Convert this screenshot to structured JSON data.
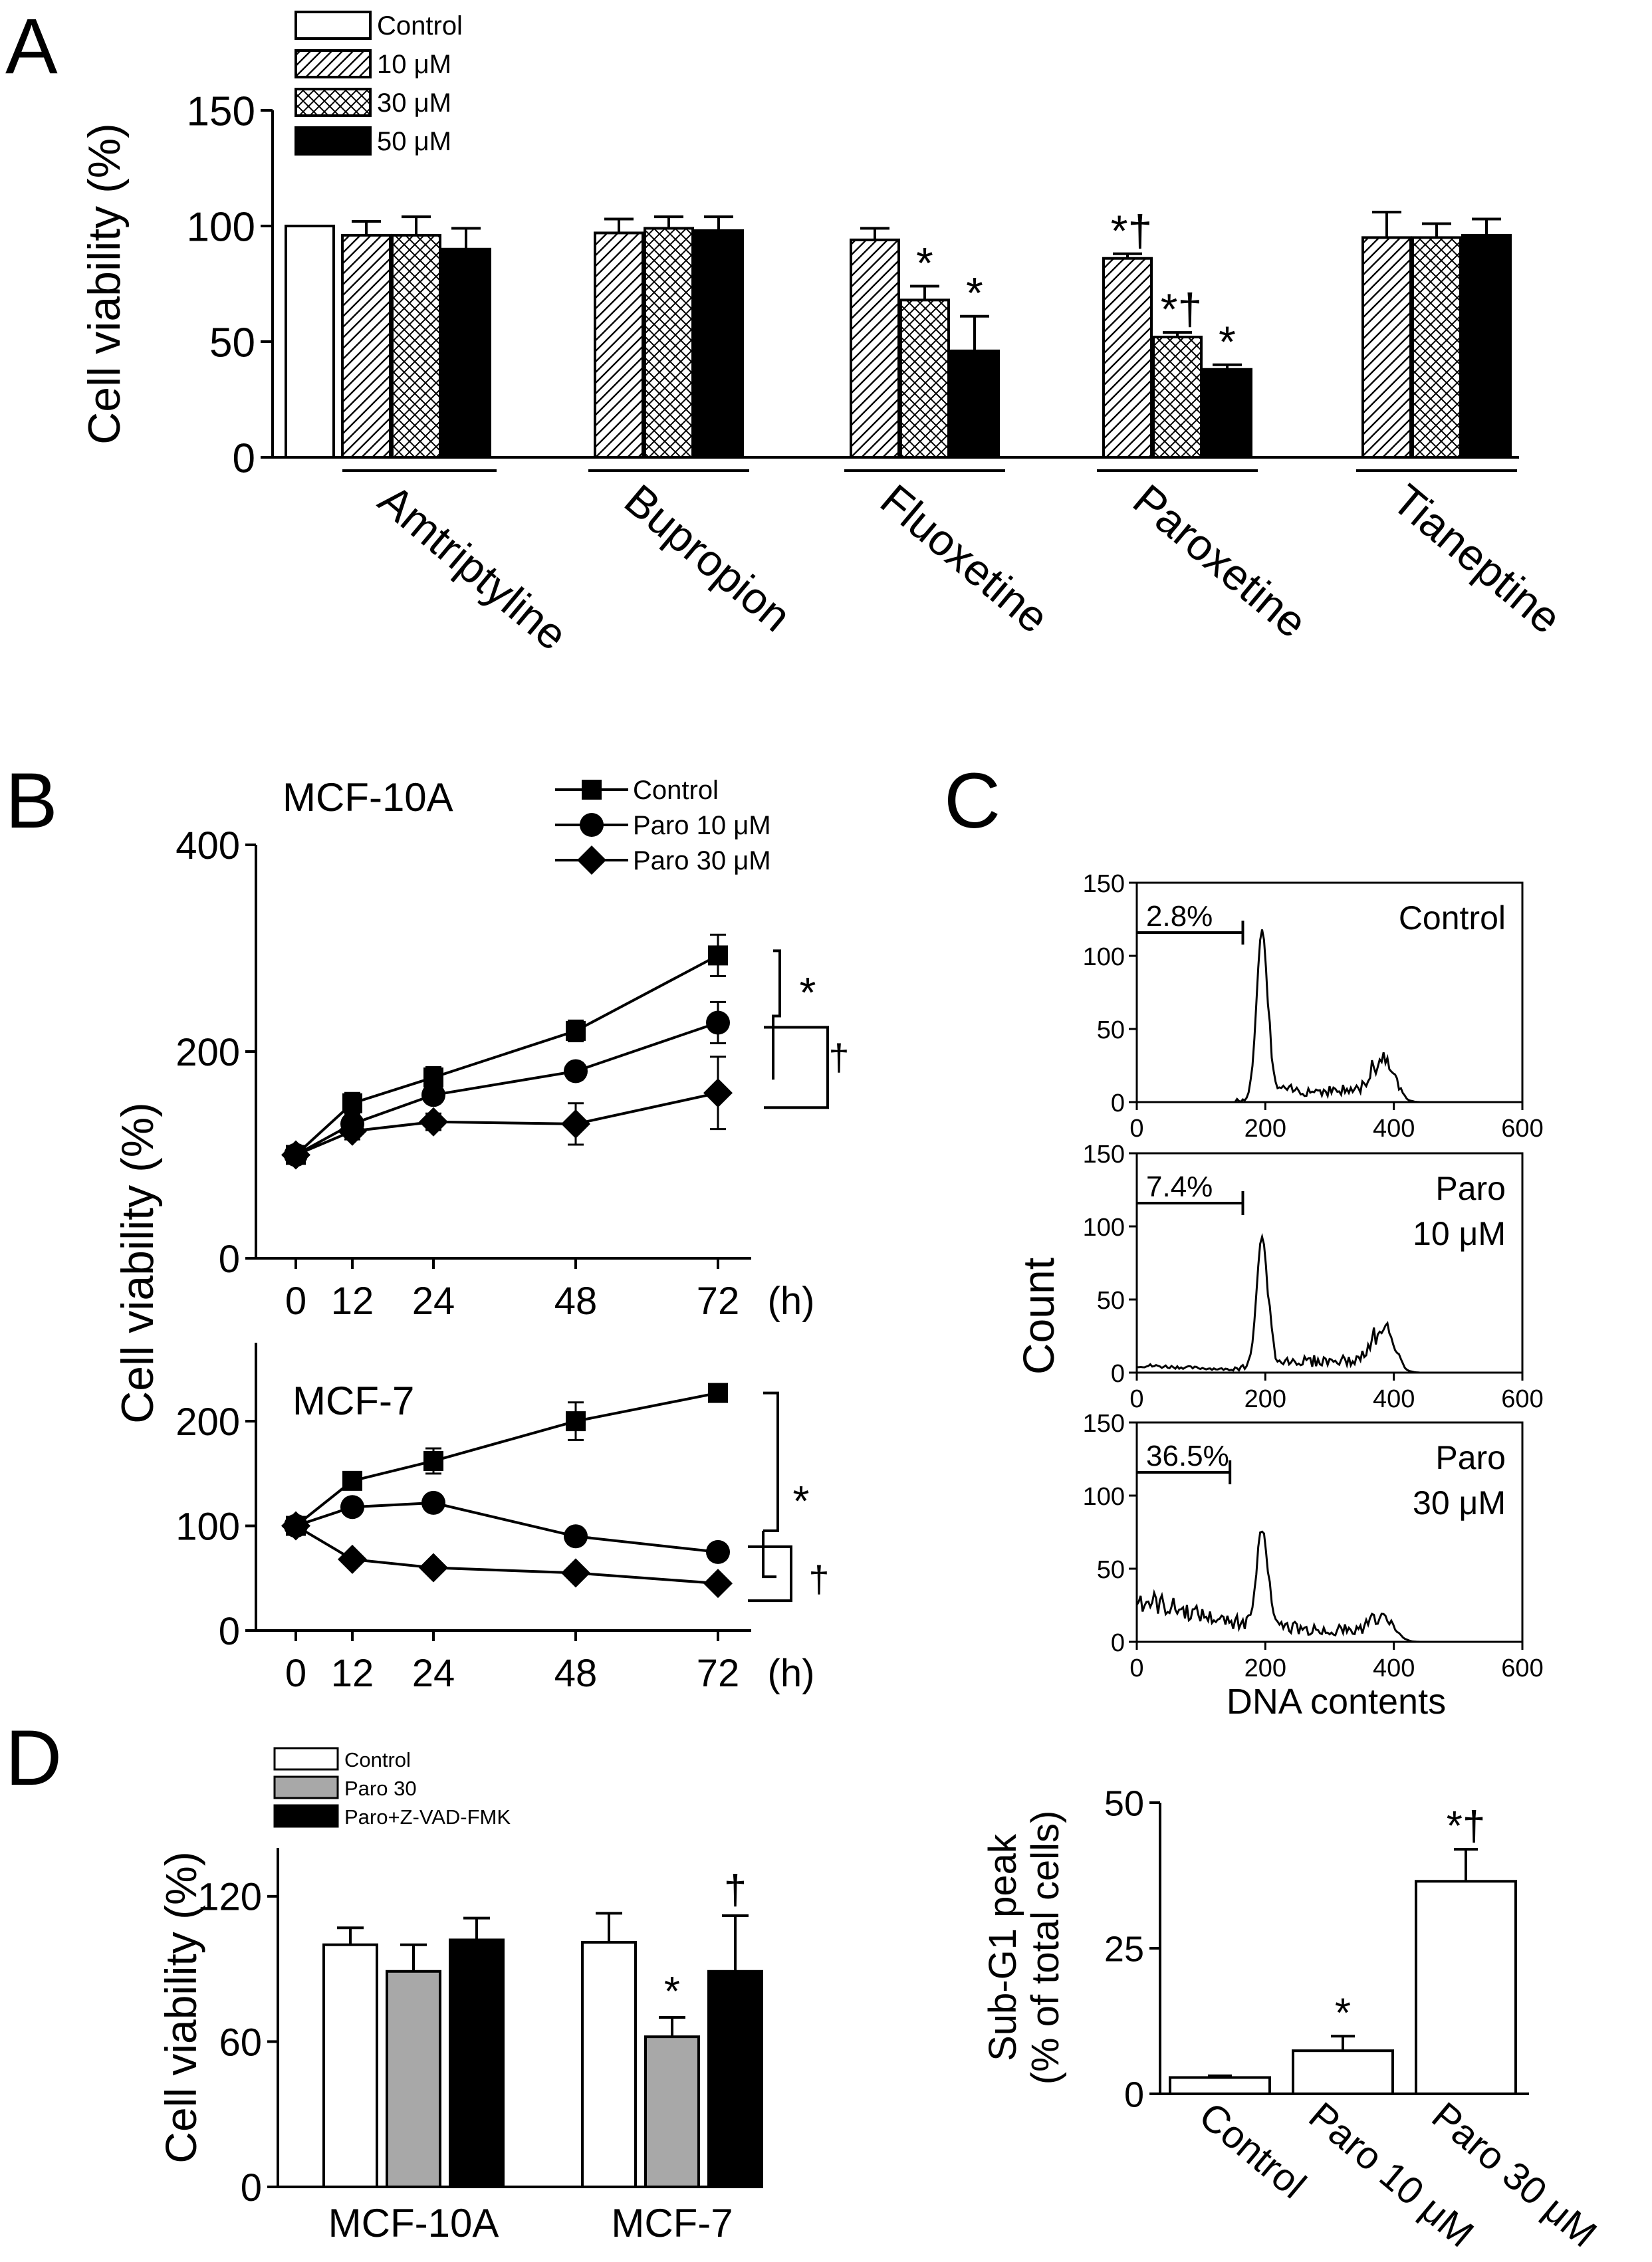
{
  "panel_labels": {
    "A": "A",
    "B": "B",
    "C": "C",
    "D": "D"
  },
  "colors": {
    "control": "#ffffff",
    "paro30": "#a8a8a8",
    "black": "#000000"
  },
  "chart_data": [
    {
      "id": "A",
      "type": "bar",
      "ylabel": "Cell viability (%)",
      "ylim": [
        0,
        150
      ],
      "yticks": [
        "0",
        "50",
        "100",
        "150"
      ],
      "legend": [
        "Control",
        "10 μM",
        "30 μM",
        "50 μM"
      ],
      "groups": [
        {
          "name": "Amtriptyline",
          "bars": [
            {
              "series": "Control",
              "value": 100,
              "err": 0,
              "mark": ""
            },
            {
              "series": "10 μM",
              "value": 96,
              "err": 6,
              "mark": ""
            },
            {
              "series": "30 μM",
              "value": 96,
              "err": 8,
              "mark": ""
            },
            {
              "series": "50 μM",
              "value": 90,
              "err": 9,
              "mark": ""
            }
          ]
        },
        {
          "name": "Bupropion",
          "bars": [
            {
              "series": "10 μM",
              "value": 97,
              "err": 6,
              "mark": ""
            },
            {
              "series": "30 μM",
              "value": 99,
              "err": 5,
              "mark": ""
            },
            {
              "series": "50 μM",
              "value": 98,
              "err": 6,
              "mark": ""
            }
          ]
        },
        {
          "name": "Fluoxetine",
          "bars": [
            {
              "series": "10 μM",
              "value": 94,
              "err": 5,
              "mark": ""
            },
            {
              "series": "30 μM",
              "value": 68,
              "err": 6,
              "mark": "*"
            },
            {
              "series": "50 μM",
              "value": 46,
              "err": 15,
              "mark": "*"
            }
          ]
        },
        {
          "name": "Paroxetine",
          "bars": [
            {
              "series": "10 μM",
              "value": 86,
              "err": 2,
              "mark": "*†"
            },
            {
              "series": "30 μM",
              "value": 52,
              "err": 2,
              "mark": "*†"
            },
            {
              "series": "50 μM",
              "value": 38,
              "err": 2,
              "mark": "*"
            }
          ]
        },
        {
          "name": "Tianeptine",
          "bars": [
            {
              "series": "10 μM",
              "value": 95,
              "err": 11,
              "mark": ""
            },
            {
              "series": "30 μM",
              "value": 95,
              "err": 6,
              "mark": ""
            },
            {
              "series": "50 μM",
              "value": 96,
              "err": 7,
              "mark": ""
            }
          ]
        }
      ]
    },
    {
      "id": "B1",
      "type": "line",
      "title": "MCF-10A",
      "ylabel": "Cell viability (%)",
      "xlabel": "(h)",
      "x": [
        0,
        12,
        24,
        48,
        72
      ],
      "xticks": [
        "0",
        "12",
        "24",
        "48",
        "72"
      ],
      "ylim": [
        0,
        400
      ],
      "yticks": [
        "0",
        "200",
        "400"
      ],
      "legend": [
        "Control",
        "Paro 10 μM",
        "Paro 30 μM"
      ],
      "series": [
        {
          "name": "Control",
          "values": [
            100,
            150,
            175,
            220,
            293
          ],
          "err": [
            8,
            10,
            10,
            10,
            20
          ]
        },
        {
          "name": "Paro 10 μM",
          "values": [
            100,
            130,
            158,
            181,
            228
          ],
          "err": [
            8,
            8,
            8,
            8,
            20
          ]
        },
        {
          "name": "Paro 30 μM",
          "values": [
            100,
            123,
            132,
            130,
            160
          ],
          "err": [
            8,
            8,
            8,
            20,
            35
          ]
        }
      ],
      "marks": [
        "*",
        "†"
      ]
    },
    {
      "id": "B2",
      "type": "line",
      "title": "MCF-7",
      "xlabel": "(h)",
      "x": [
        0,
        12,
        24,
        48,
        72
      ],
      "xticks": [
        "0",
        "12",
        "24",
        "48",
        "72"
      ],
      "ylim": [
        0,
        275
      ],
      "yticks": [
        "0",
        "100",
        "200"
      ],
      "series": [
        {
          "name": "Control",
          "values": [
            100,
            143,
            162,
            200,
            227
          ],
          "err": [
            6,
            8,
            12,
            18,
            8
          ]
        },
        {
          "name": "Paro 10 μM",
          "values": [
            100,
            118,
            122,
            90,
            75
          ],
          "err": [
            6,
            6,
            6,
            6,
            6
          ]
        },
        {
          "name": "Paro 30 μM",
          "values": [
            100,
            68,
            60,
            55,
            45
          ],
          "err": [
            6,
            5,
            5,
            5,
            5
          ]
        }
      ],
      "marks": [
        "*",
        "†"
      ]
    },
    {
      "id": "C",
      "type": "line",
      "ylabel": "Count",
      "xlabel": "DNA contents",
      "xlim": [
        0,
        600
      ],
      "ylim": [
        0,
        150
      ],
      "xticks": [
        "0",
        "200",
        "400",
        "600"
      ],
      "yticks": [
        "0",
        "50",
        "100",
        "150"
      ],
      "histograms": [
        {
          "label": "Control",
          "gate_text": "2.8%",
          "gate_end": 165,
          "g1_peak": 118,
          "g2_peak": 32,
          "subg1_level": 0
        },
        {
          "label": "Paro\n10 μM",
          "gate_text": "7.4%",
          "gate_end": 165,
          "g1_peak": 92,
          "g2_peak": 32,
          "subg1_level": 5
        },
        {
          "label": "Paro\n30 μM",
          "gate_text": "36.5%",
          "gate_end": 145,
          "g1_peak": 70,
          "g2_peak": 17,
          "subg1_level": 30
        }
      ]
    },
    {
      "id": "C2",
      "type": "bar",
      "ylabel": "Sub-G1 peak\n(% of total cells)",
      "ylim": [
        0,
        50
      ],
      "yticks": [
        "0",
        "25",
        "50"
      ],
      "categories": [
        "Control",
        "Paro 10 μM",
        "Paro 30 μM"
      ],
      "values": [
        2.8,
        7.4,
        36.5
      ],
      "err": [
        0.3,
        2.5,
        5.5
      ],
      "marks": [
        "",
        "*",
        "*†"
      ]
    },
    {
      "id": "D",
      "type": "bar",
      "ylabel": "Cell viability (%)",
      "ylim": [
        0,
        140
      ],
      "yticks": [
        "0",
        "60",
        "120"
      ],
      "legend": [
        "Control",
        "Paro 30",
        "Paro+Z-VAD-FMK"
      ],
      "groups": [
        {
          "name": "MCF-10A",
          "bars": [
            {
              "series": "Control",
              "value": 100,
              "err": 7,
              "mark": ""
            },
            {
              "series": "Paro 30",
              "value": 89,
              "err": 11,
              "mark": ""
            },
            {
              "series": "Paro+Z-VAD-FMK",
              "value": 102,
              "err": 9,
              "mark": ""
            }
          ]
        },
        {
          "name": "MCF-7",
          "bars": [
            {
              "series": "Control",
              "value": 101,
              "err": 12,
              "mark": ""
            },
            {
              "series": "Paro 30",
              "value": 62,
              "err": 8,
              "mark": "*"
            },
            {
              "series": "Paro+Z-VAD-FMK",
              "value": 89,
              "err": 23,
              "mark": "†"
            }
          ]
        }
      ]
    }
  ]
}
